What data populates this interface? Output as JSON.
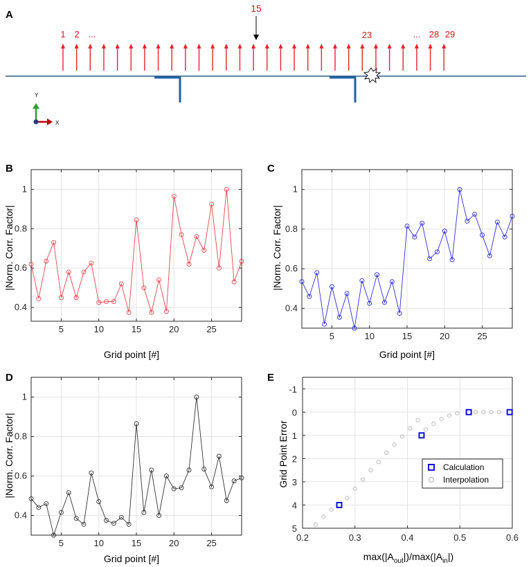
{
  "panel_a": {
    "label": "A",
    "arrow_labels": [
      "1",
      "2",
      "...",
      "23",
      "...",
      "28",
      "29"
    ],
    "top_label": "15",
    "axis_y_label": "Y",
    "axis_x_label": "X",
    "arrow_count": 29,
    "colors": {
      "arrows": "#e8222a",
      "beam": "#2b5d92",
      "bracket": "#1f5fa3",
      "axis_y": "#2ca02c",
      "axis_x": "#c00000",
      "axis_z": "#1f3d7a"
    }
  },
  "chart_data": [
    {
      "panel": "B",
      "type": "line",
      "color": "#e8454a",
      "x": [
        1,
        2,
        3,
        4,
        5,
        6,
        7,
        8,
        9,
        10,
        11,
        12,
        13,
        14,
        15,
        16,
        17,
        18,
        19,
        20,
        21,
        22,
        23,
        24,
        25,
        26,
        27,
        28,
        29
      ],
      "values": [
        0.62,
        0.445,
        0.635,
        0.73,
        0.45,
        0.58,
        0.45,
        0.58,
        0.625,
        0.425,
        0.43,
        0.43,
        0.52,
        0.375,
        0.845,
        0.5,
        0.375,
        0.54,
        0.38,
        0.965,
        0.77,
        0.62,
        0.76,
        0.69,
        0.925,
        0.6,
        1.0,
        0.53,
        0.635
      ],
      "xlabel": "Grid point [#]",
      "ylabel": "|Norm. Corr. Factor|",
      "xlim": [
        1,
        29
      ],
      "ylim": [
        0.33,
        1.1
      ],
      "xticks": [
        5,
        10,
        15,
        20,
        25
      ],
      "yticks": [
        0.4,
        0.6,
        0.8,
        1
      ],
      "ytick_labels": [
        "0.4",
        "0.6",
        "0.8",
        "1"
      ],
      "grid": true
    },
    {
      "panel": "C",
      "type": "line",
      "color": "#2d2ddb",
      "x": [
        1,
        2,
        3,
        4,
        5,
        6,
        7,
        8,
        9,
        10,
        11,
        12,
        13,
        14,
        15,
        16,
        17,
        18,
        19,
        20,
        21,
        22,
        23,
        24,
        25,
        26,
        27,
        28,
        29
      ],
      "values": [
        0.535,
        0.46,
        0.58,
        0.32,
        0.51,
        0.355,
        0.475,
        0.3,
        0.54,
        0.425,
        0.57,
        0.43,
        0.535,
        0.375,
        0.815,
        0.76,
        0.83,
        0.65,
        0.685,
        0.79,
        0.645,
        1.0,
        0.84,
        0.875,
        0.77,
        0.665,
        0.835,
        0.76,
        0.865
      ],
      "xlabel": "Grid point [#]",
      "ylabel": "|Norm. Corr. Factor|",
      "xlim": [
        1,
        29
      ],
      "ylim": [
        0.3,
        1.1
      ],
      "xticks": [
        5,
        10,
        15,
        20,
        25
      ],
      "yticks": [
        0.4,
        0.6,
        0.8,
        1
      ],
      "ytick_labels": [
        "0.4",
        "0.6",
        "0.8",
        "1"
      ],
      "grid": true
    },
    {
      "panel": "D",
      "type": "line",
      "color": "#333333",
      "x": [
        1,
        2,
        3,
        4,
        5,
        6,
        7,
        8,
        9,
        10,
        11,
        12,
        13,
        14,
        15,
        16,
        17,
        18,
        19,
        20,
        21,
        22,
        23,
        24,
        25,
        26,
        27,
        28,
        29
      ],
      "values": [
        0.485,
        0.44,
        0.46,
        0.3,
        0.415,
        0.515,
        0.385,
        0.355,
        0.615,
        0.47,
        0.375,
        0.36,
        0.39,
        0.355,
        0.865,
        0.415,
        0.63,
        0.4,
        0.6,
        0.535,
        0.54,
        0.63,
        1.0,
        0.635,
        0.545,
        0.7,
        0.475,
        0.575,
        0.59
      ],
      "xlabel": "Grid point [#]",
      "ylabel": "|Norm. Corr. Factor|",
      "xlim": [
        1,
        29
      ],
      "ylim": [
        0.3,
        1.1
      ],
      "xticks": [
        5,
        10,
        15,
        20,
        25
      ],
      "yticks": [
        0.4,
        0.6,
        0.8,
        1
      ],
      "ytick_labels": [
        "0.4",
        "0.6",
        "0.8",
        "1"
      ],
      "grid": true
    },
    {
      "panel": "E",
      "type": "scatter",
      "xlabel_main": "max(|A",
      "xlabel_sub1": "out",
      "xlabel_mid": "|)/max(|A",
      "xlabel_sub2": "in",
      "xlabel_end": "|)",
      "ylabel": "Grid Point Error",
      "xlim": [
        0.2,
        0.6
      ],
      "ylim": [
        5,
        -1.5
      ],
      "xticks": [
        0.2,
        0.3,
        0.4,
        0.5,
        0.6
      ],
      "xtick_labels": [
        "0.2",
        "0.3",
        "0.4",
        "0.5",
        "0.6"
      ],
      "yticks": [
        -1,
        0,
        1,
        2,
        3,
        4,
        5
      ],
      "ytick_labels": [
        "-1",
        "0",
        "1",
        "2",
        "3",
        "4",
        "5"
      ],
      "grid": true,
      "legend_position": "bottom-right",
      "series": [
        {
          "name": "Calculation",
          "marker": "square",
          "color": "#1010e0",
          "x": [
            0.27,
            0.427,
            0.517,
            0.595
          ],
          "y": [
            4,
            1,
            0,
            0
          ]
        },
        {
          "name": "Interpolation",
          "marker": "circle",
          "color": "#bdbdbd",
          "x": [
            0.225,
            0.24,
            0.255,
            0.285,
            0.3,
            0.315,
            0.33,
            0.345,
            0.36,
            0.375,
            0.39,
            0.405,
            0.42,
            0.435,
            0.45,
            0.465,
            0.48,
            0.495,
            0.53,
            0.545,
            0.56,
            0.575
          ],
          "y": [
            4.85,
            4.5,
            4.2,
            3.7,
            3.3,
            2.9,
            2.5,
            2.15,
            1.75,
            1.4,
            1.05,
            0.7,
            0.35,
            0.75,
            0.5,
            0.3,
            0.15,
            0.05,
            0,
            0,
            0,
            0
          ]
        }
      ]
    }
  ]
}
